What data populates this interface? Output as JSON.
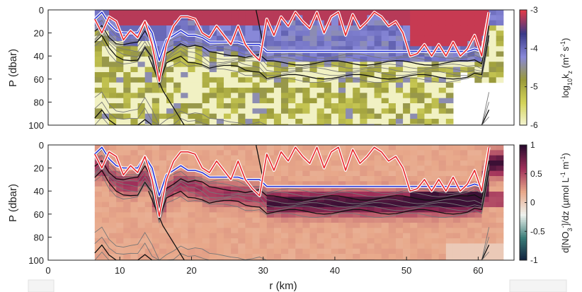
{
  "chart_data": [
    {
      "type": "heatmap",
      "panel": "top",
      "ylabel": "P (dbar)",
      "xlabel": "",
      "xlim": [
        0,
        65
      ],
      "ylim": [
        100,
        0
      ],
      "yticks": [
        "0",
        "20",
        "40",
        "60",
        "80",
        "100"
      ],
      "colorbar": {
        "label": "log10kz (m2 s-1)",
        "label_parts": {
          "pre": "log",
          "sub1": "10",
          "mid": "k",
          "sub2": "z",
          "unit_pre": " (m",
          "sup1": "2",
          "unit_mid": " s",
          "sup2": "-1",
          "unit_post": ")"
        },
        "range": [
          -6,
          -3
        ],
        "ticks": [
          "-3",
          "-4",
          "-5",
          "-6"
        ],
        "colors": [
          "#f6f6d6",
          "#d4d45a",
          "#9a9a3a",
          "#8888d8",
          "#3a3a88",
          "#e03a48"
        ]
      },
      "data_extent_km": [
        6.5,
        63
      ]
    },
    {
      "type": "heatmap",
      "panel": "bottom",
      "ylabel": "P (dbar)",
      "xlabel": "r (km)",
      "xlim": [
        0,
        65
      ],
      "ylim": [
        100,
        0
      ],
      "xticks": [
        "0",
        "10",
        "20",
        "30",
        "40",
        "50",
        "60"
      ],
      "yticks": [
        "0",
        "20",
        "40",
        "60",
        "80",
        "100"
      ],
      "colorbar": {
        "label": "d[NO3-]/dz (µmol L-1 m-1)",
        "label_parts": {
          "pre": "d[NO",
          "sub1": "3",
          "sup1": "-",
          "mid": "]/dz (",
          "mu": "µ",
          "unit": "mol L",
          "sup2": "-1",
          "unit_mid": " m",
          "sup3": "-1",
          "unit_post": ")"
        },
        "range": [
          -1,
          1
        ],
        "ticks": [
          "1",
          "0.5",
          "0",
          "-0.5",
          "-1"
        ],
        "colors": [
          "#0f1e3c",
          "#3a7c78",
          "#eef2ee",
          "#e8a88a",
          "#a0305a",
          "#2a0a2e"
        ]
      },
      "data_extent_km": [
        6.5,
        63
      ]
    }
  ],
  "lines": {
    "red_mld": {
      "x": [
        6.5,
        7.5,
        8.5,
        9.5,
        10.5,
        11.5,
        12.5,
        13.5,
        14.5,
        15.5,
        16.5,
        17.5,
        18.5,
        19.5,
        20.5,
        21.5,
        22.5,
        23.5,
        24.5,
        25.5,
        26.5,
        27.5,
        28.5,
        29.5,
        30.5,
        31.5,
        32.5,
        33.5,
        34.5,
        35.5,
        36.5,
        37.5,
        38.5,
        39.5,
        40.5,
        41.5,
        42.5,
        43.5,
        44.5,
        45.5,
        46.5,
        47.5,
        48.5,
        49.5,
        50.5,
        51.5,
        52.5,
        53.5,
        54.5,
        55.5,
        56.5,
        57.5,
        58.5,
        59.5,
        60.5,
        61.5
      ],
      "y": [
        8,
        20,
        6,
        10,
        26,
        18,
        24,
        10,
        30,
        62,
        30,
        14,
        6,
        6,
        8,
        20,
        24,
        14,
        22,
        30,
        14,
        30,
        38,
        44,
        8,
        22,
        6,
        14,
        2,
        10,
        16,
        2,
        20,
        6,
        2,
        22,
        4,
        16,
        10,
        2,
        6,
        14,
        10,
        20,
        40,
        38,
        30,
        40,
        30,
        40,
        28,
        40,
        34,
        22,
        40,
        2
      ],
      "color": "#e8262c"
    },
    "blue_line": {
      "x": [
        6.5,
        7.5,
        8.5,
        9.5,
        10.5,
        11.5,
        12.5,
        13.5,
        14.5,
        15.5,
        16.5,
        17.5,
        18.5,
        19.5,
        20.5,
        21.5,
        22.5,
        23.5,
        24.5,
        25.5,
        26.5,
        27.5,
        28.5,
        29.5,
        30.5,
        31.5,
        32.5,
        33.5,
        34.5,
        35.5,
        36.5,
        37.5,
        38.5,
        39.5,
        40.5,
        41.5,
        42.5,
        43.5,
        44.5,
        45.5,
        46.5,
        47.5,
        48.5,
        49.5,
        50.5,
        51.5,
        52.5,
        53.5,
        54.5,
        55.5,
        56.5,
        57.5,
        58.5,
        59.5,
        60.5,
        61.5
      ],
      "y": [
        8,
        2,
        12,
        18,
        20,
        20,
        20,
        10,
        20,
        44,
        26,
        22,
        18,
        22,
        22,
        24,
        28,
        28,
        28,
        28,
        28,
        30,
        30,
        30,
        36,
        36,
        36,
        36,
        36,
        36,
        36,
        36,
        36,
        36,
        36,
        36,
        36,
        36,
        36,
        36,
        36,
        36,
        36,
        36,
        36,
        36,
        36,
        36,
        36,
        36,
        36,
        36,
        36,
        34,
        36,
        2
      ],
      "color": "#2a36d8"
    }
  }
}
